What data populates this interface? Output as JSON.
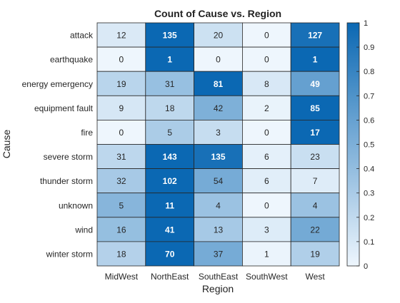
{
  "chart_data": {
    "type": "heatmap",
    "title": "Count of Cause vs. Region",
    "xlabel": "Region",
    "ylabel": "Cause",
    "x_categories": [
      "MidWest",
      "NorthEast",
      "SouthEast",
      "SouthWest",
      "West"
    ],
    "y_categories": [
      "attack",
      "earthquake",
      "energy emergency",
      "equipment fault",
      "fire",
      "severe storm",
      "thunder storm",
      "unknown",
      "wind",
      "winter storm"
    ],
    "values": [
      [
        12,
        135,
        20,
        0,
        127
      ],
      [
        0,
        1,
        0,
        0,
        1
      ],
      [
        19,
        31,
        81,
        8,
        49
      ],
      [
        9,
        18,
        42,
        2,
        85
      ],
      [
        0,
        5,
        3,
        0,
        17
      ],
      [
        31,
        143,
        135,
        6,
        23
      ],
      [
        32,
        102,
        54,
        6,
        7
      ],
      [
        5,
        11,
        4,
        0,
        4
      ],
      [
        16,
        41,
        13,
        3,
        22
      ],
      [
        18,
        70,
        37,
        1,
        19
      ]
    ],
    "color_normalization": "row",
    "colorbar": {
      "range": [
        0,
        1
      ],
      "ticks": [
        "0",
        "0.1",
        "0.2",
        "0.3",
        "0.4",
        "0.5",
        "0.6",
        "0.7",
        "0.8",
        "0.9",
        "1"
      ],
      "colormap_low": "#eef6fd",
      "colormap_high": "#0b68b3",
      "placement": "right"
    },
    "grid": true
  }
}
